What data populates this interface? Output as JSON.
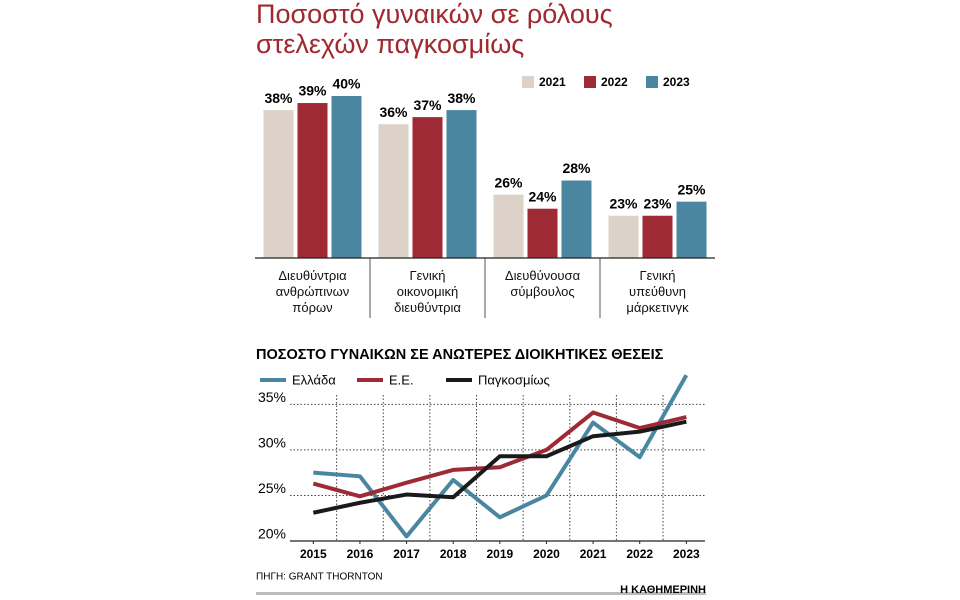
{
  "title": "Ποσοστό γυναικών σε ρόλους στελεχών παγκοσμίως",
  "chart_data": [
    {
      "type": "bar",
      "categories": [
        "Διευθύντρια\nανθρώπινων\nπόρων",
        "Γενική\nοικονομική\nδιευθύντρια",
        "Διευθύνουσα\nσύμβουλος",
        "Γενική\nυπεύθυνη\nμάρκετινγκ"
      ],
      "series": [
        {
          "name": "2021",
          "color": "#dcd2c8",
          "values": [
            38,
            36,
            26,
            23
          ],
          "value_labels": [
            "38%",
            "36%",
            "26%",
            "23%"
          ]
        },
        {
          "name": "2022",
          "color": "#9e2a36",
          "values": [
            39,
            37,
            24,
            23
          ],
          "value_labels": [
            "39%",
            "37%",
            "24%",
            "23%"
          ]
        },
        {
          "name": "2023",
          "color": "#4a86a0",
          "values": [
            40,
            38,
            28,
            25
          ],
          "value_labels": [
            "40%",
            "38%",
            "28%",
            "25%"
          ]
        }
      ],
      "ylim": [
        17,
        40
      ]
    },
    {
      "type": "line",
      "title": "ΠΟΣΟΣΤΟ ΓΥΝΑΙΚΩΝ ΣΕ ΑΝΩΤΕΡΕΣ ΔΙΟΙΚΗΤΙΚΕΣ ΘΕΣΕΙΣ",
      "x": [
        2015,
        2016,
        2017,
        2018,
        2019,
        2020,
        2021,
        2022,
        2023
      ],
      "xlim": [
        2014.5,
        2023.4
      ],
      "xticks": [
        2015,
        2016,
        2017,
        2018,
        2019,
        2020,
        2021,
        2022,
        2023
      ],
      "series": [
        {
          "name": "Ελλάδα",
          "color": "#4a86a0",
          "values": [
            27.5,
            27.1,
            20.5,
            26.7,
            22.6,
            25.0,
            33.0,
            29.2,
            38.2
          ]
        },
        {
          "name": "Ε.Ε.",
          "color": "#9e2a36",
          "values": [
            26.3,
            24.9,
            26.4,
            27.8,
            28.1,
            30.0,
            34.1,
            32.4,
            33.6
          ]
        },
        {
          "name": "Παγκοσμίως",
          "color": "#1a1a1a",
          "values": [
            23.1,
            24.2,
            25.1,
            24.8,
            29.3,
            29.3,
            31.5,
            32.0,
            33.1
          ]
        }
      ],
      "ylim": [
        20,
        38
      ],
      "yticks": [
        {
          "value": 20,
          "label": "20%"
        },
        {
          "value": 25,
          "label": "25%"
        },
        {
          "value": 30,
          "label": "30%"
        },
        {
          "value": 35,
          "label": "35%"
        }
      ],
      "grid": true
    }
  ],
  "source": "ΠΗΓΗ: GRANT THORNTON",
  "publisher": "Η ΚΑΘΗΜΕΡΙΝΗ"
}
